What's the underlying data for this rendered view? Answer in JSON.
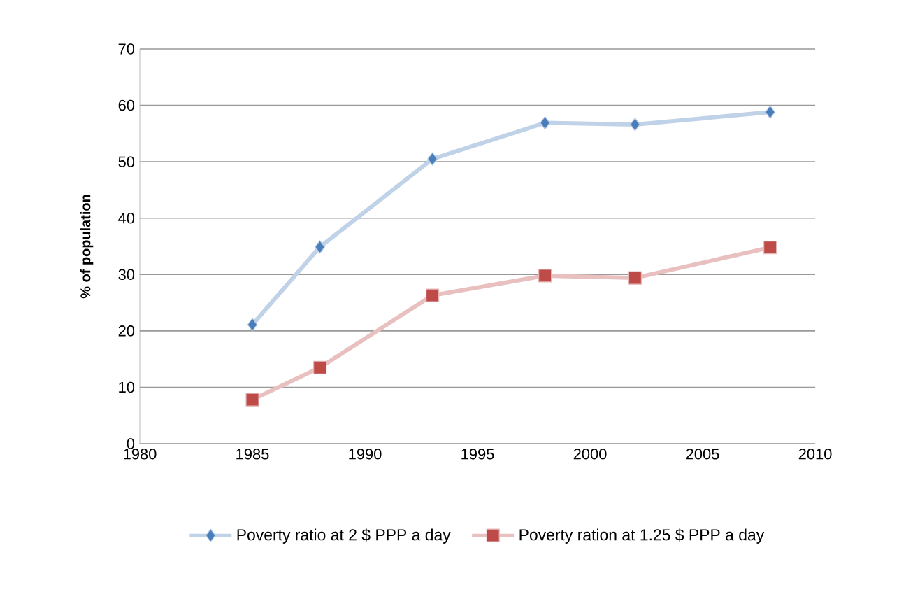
{
  "chart_data": {
    "type": "line",
    "ylabel": "% of population",
    "x": [
      1985,
      1988,
      1993,
      1998,
      2002,
      2008
    ],
    "series": [
      {
        "name": "Poverty ratio at 2 $ PPP a day",
        "color": "#4a7ebb",
        "marker": "diamond",
        "values": [
          21.1,
          34.9,
          50.5,
          56.9,
          56.6,
          58.8
        ]
      },
      {
        "name": "Poverty ration at 1.25 $ PPP a day",
        "color": "#be4b48",
        "marker": "square",
        "values": [
          7.8,
          13.5,
          26.3,
          29.8,
          29.4,
          34.8
        ]
      }
    ],
    "xlim": [
      1980,
      2010
    ],
    "xticks": [
      1980,
      1985,
      1990,
      1995,
      2000,
      2005,
      2010
    ],
    "ylim": [
      0,
      70
    ],
    "yticks": [
      0,
      10,
      20,
      30,
      40,
      50,
      60,
      70
    ],
    "grid": "y",
    "legend": "bottom",
    "line_style": "solid"
  }
}
